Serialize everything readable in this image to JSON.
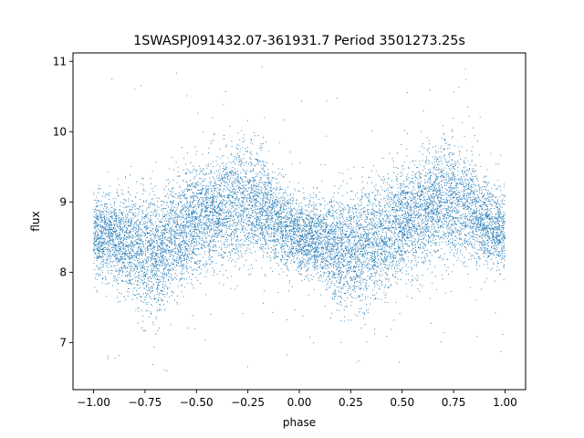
{
  "chart_data": {
    "type": "scatter",
    "title": "1SWASPJ091432.07-361931.7 Period 3501273.25s",
    "xlabel": "phase",
    "ylabel": "flux",
    "xlim": [
      -1.1,
      1.1
    ],
    "ylim": [
      6.33,
      11.12
    ],
    "xticks": [
      -1.0,
      -0.75,
      -0.5,
      -0.25,
      0.0,
      0.25,
      0.5,
      0.75,
      1.0
    ],
    "xtick_labels": [
      "−1.00",
      "−0.75",
      "−0.50",
      "−0.25",
      "0.00",
      "0.25",
      "0.50",
      "0.75",
      "1.00"
    ],
    "yticks": [
      7,
      8,
      9,
      10,
      11
    ],
    "ytick_labels": [
      "7",
      "8",
      "9",
      "10",
      "11"
    ],
    "grid": false,
    "point_color": "#1f77b4",
    "series": [
      {
        "phase_profile": {
          "x": [
            -1.0,
            -0.9,
            -0.8,
            -0.7,
            -0.6,
            -0.5,
            -0.4,
            -0.3,
            -0.2,
            -0.1,
            0.0,
            0.1,
            0.2,
            0.3,
            0.4,
            0.5,
            0.6,
            0.7,
            0.8,
            0.9,
            1.0
          ],
          "median_flux": [
            8.55,
            8.5,
            8.35,
            8.25,
            8.5,
            8.75,
            8.85,
            9.0,
            8.95,
            8.7,
            8.5,
            8.45,
            8.3,
            8.3,
            8.5,
            8.7,
            8.85,
            9.0,
            8.95,
            8.7,
            8.55
          ],
          "spread": [
            0.35,
            0.35,
            0.45,
            0.5,
            0.45,
            0.45,
            0.45,
            0.5,
            0.45,
            0.35,
            0.3,
            0.35,
            0.45,
            0.5,
            0.45,
            0.45,
            0.45,
            0.5,
            0.45,
            0.35,
            0.35
          ]
        },
        "n_points": 12000,
        "flux_range": [
          6.55,
          10.95
        ]
      }
    ]
  }
}
